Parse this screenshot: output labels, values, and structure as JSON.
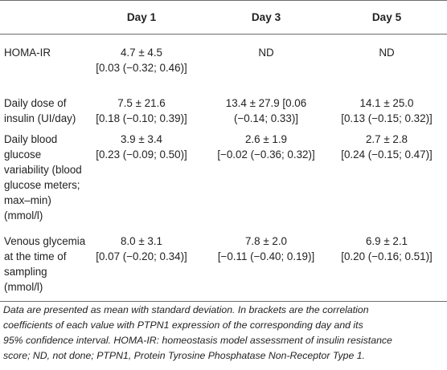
{
  "headers": [
    "",
    "Day 1",
    "Day 3",
    "Day 5"
  ],
  "rows": [
    {
      "label": [
        "HOMA-IR"
      ],
      "cells": [
        [
          "4.7 ± 4.5",
          "[0.03 (−0.32; 0.46)]"
        ],
        [
          "ND"
        ],
        [
          "ND"
        ]
      ]
    },
    {
      "label": [
        "Daily dose of",
        "insulin (UI/day)"
      ],
      "cells": [
        [
          "7.5 ± 21.6",
          "[0.18 (−0.10; 0.39)]"
        ],
        [
          "13.4 ± 27.9 [0.06",
          "(−0.14; 0.33)]"
        ],
        [
          "14.1 ± 25.0",
          "[0.13 (−0.15; 0.32)]"
        ]
      ]
    },
    {
      "label": [
        "Daily blood",
        "glucose",
        "variability (blood",
        "glucose meters;",
        "max–min)",
        "(mmol/l)"
      ],
      "cells": [
        [
          "3.9 ± 3.4",
          "[0.23 (−0.09; 0.50)]"
        ],
        [
          "2.6 ± 1.9",
          "[−0.02 (−0.36; 0.32)]"
        ],
        [
          "2.7 ± 2.8",
          "[0.24 (−0.15; 0.47)]"
        ]
      ]
    },
    {
      "label": [
        "Venous glycemia",
        "at the time of",
        "sampling",
        "(mmol/l)"
      ],
      "cells": [
        [
          "8.0 ± 3.1",
          "[0.07 (−0.20; 0.34)]"
        ],
        [
          "7.8 ± 2.0",
          "[−0.11 (−0.40; 0.19)]"
        ],
        [
          "6.9 ± 2.1",
          "[0.20 (−0.16; 0.51)]"
        ]
      ]
    }
  ],
  "footnote": [
    "Data are presented as mean with standard deviation. In brackets are the correlation",
    "coefficients of each value with PTPN1 expression of the corresponding day and its",
    "95% confidence interval. HOMA-IR: homeostasis model assessment of insulin resistance",
    "score; ND, not done; PTPN1, Protein Tyrosine Phosphatase Non-Receptor Type 1."
  ]
}
